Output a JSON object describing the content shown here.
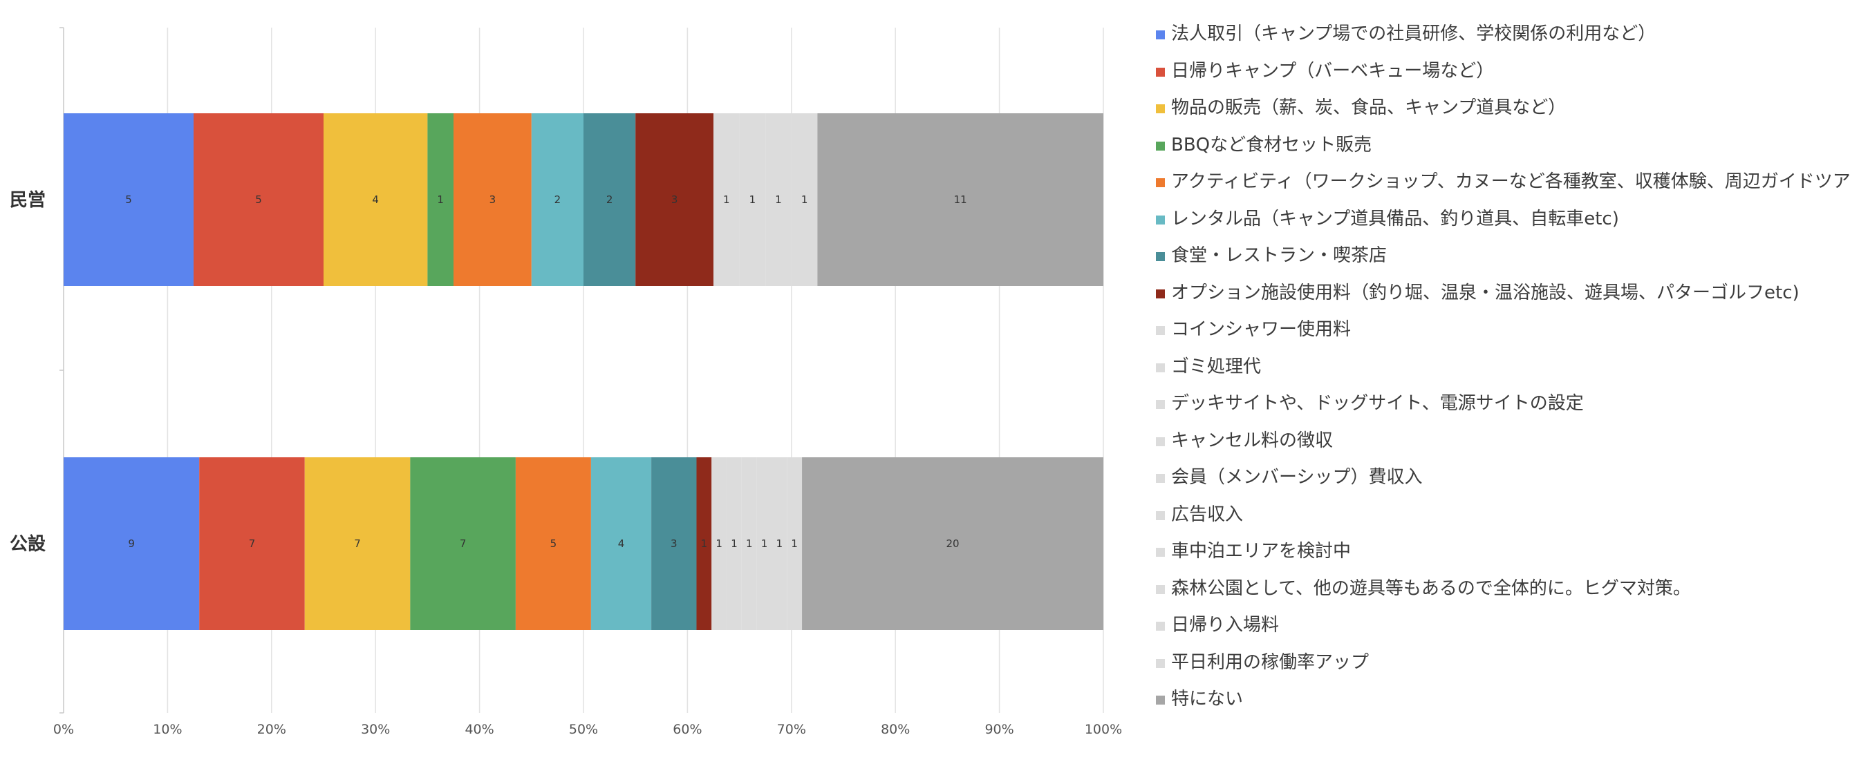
{
  "chart_data": {
    "type": "bar",
    "orientation": "horizontal",
    "stacking": "percent",
    "categories": [
      "民営",
      "公設"
    ],
    "series": [
      {
        "name": "法人取引（キャンプ場での社員研修、学校関係の利用など）",
        "color": "#5b84ee",
        "values": [
          5,
          9
        ]
      },
      {
        "name": "日帰りキャンプ（バーベキュー場など）",
        "color": "#d9513c",
        "values": [
          5,
          7
        ]
      },
      {
        "name": "物品の販売（薪、炭、食品、キャンプ道具など）",
        "color": "#f0bf3c",
        "values": [
          4,
          7
        ]
      },
      {
        "name": "BBQなど食材セット販売",
        "color": "#58a65c",
        "values": [
          1,
          7
        ]
      },
      {
        "name": "アクティビティ（ワークショップ、カヌーなど各種教室、収穫体験、周辺ガイドツアーなど）",
        "color": "#ee7a2e",
        "values": [
          3,
          5
        ]
      },
      {
        "name": "レンタル品（キャンプ道具備品、釣り道具、自転車etc)",
        "color": "#68bac4",
        "values": [
          2,
          4
        ]
      },
      {
        "name": "食堂・レストラン・喫茶店",
        "color": "#4a8e98",
        "values": [
          2,
          3
        ]
      },
      {
        "name": "オプション施設使用料（釣り堀、温泉・温浴施設、遊具場、パターゴルフetc)",
        "color": "#8f2a1b",
        "values": [
          3,
          1
        ]
      },
      {
        "name": "コインシャワー使用料",
        "color": "#dcdcdc",
        "values": [
          1,
          1
        ]
      },
      {
        "name": "ゴミ処理代",
        "color": "#dcdcdc",
        "values": [
          1,
          1
        ]
      },
      {
        "name": "デッキサイトや、ドッグサイト、電源サイトの設定",
        "color": "#dcdcdc",
        "values": [
          1,
          1
        ]
      },
      {
        "name": "キャンセル料の徴収",
        "color": "#dcdcdc",
        "values": [
          1,
          1
        ]
      },
      {
        "name": "会員（メンバーシップ）費収入",
        "color": "#dcdcdc",
        "values": [
          0,
          1
        ]
      },
      {
        "name": "広告収入",
        "color": "#dcdcdc",
        "values": [
          0,
          1
        ]
      },
      {
        "name": "車中泊エリアを検討中",
        "color": "#dcdcdc",
        "values": [
          0,
          0
        ]
      },
      {
        "name": "森林公園として、他の遊具等もあるので全体的に。ヒグマ対策。",
        "color": "#dcdcdc",
        "values": [
          0,
          0
        ]
      },
      {
        "name": "日帰り入場料",
        "color": "#dcdcdc",
        "values": [
          0,
          0
        ]
      },
      {
        "name": "平日利用の稼働率アップ",
        "color": "#dcdcdc",
        "values": [
          0,
          0
        ]
      },
      {
        "name": "特にない",
        "color": "#a6a6a6",
        "values": [
          11,
          20
        ]
      }
    ],
    "x_ticks": [
      "0%",
      "10%",
      "20%",
      "30%",
      "40%",
      "50%",
      "60%",
      "70%",
      "80%",
      "90%",
      "100%"
    ],
    "xlim": [
      0,
      100
    ],
    "grid": true,
    "legend_position": "right"
  }
}
